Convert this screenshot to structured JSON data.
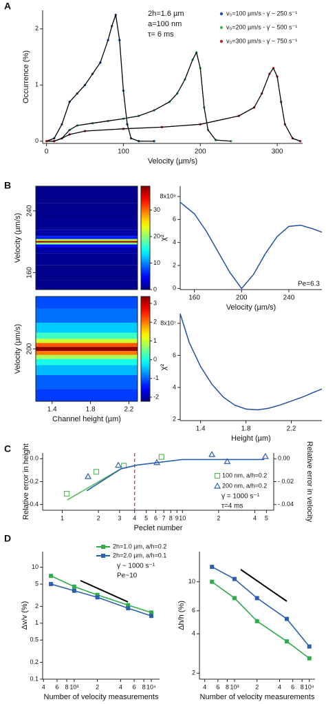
{
  "chart_data": [
    {
      "type": "line",
      "panel": "A",
      "xlabel": "Velocity (µm/s)",
      "ylabel": "Occurrence (%)",
      "annotations": [
        "2h=1.6 µm",
        "a=100 nm",
        "τ= 6 ms"
      ],
      "xlim": [
        -5,
        333
      ],
      "ylim": [
        -0.04,
        2.33
      ],
      "xticks": [
        0,
        100,
        200,
        300
      ],
      "yticks": [
        0,
        1,
        2
      ],
      "fit_color": "#000000",
      "series": [
        {
          "name": "v₀=100 µm/s  -  γ̇ ~ 250 s⁻¹",
          "color": "#1f4fa0",
          "marker": "dot",
          "x": [
            0,
            10,
            20,
            30,
            40,
            50,
            60,
            70,
            80,
            85,
            90,
            95,
            100,
            105,
            110,
            120,
            140
          ],
          "values": [
            0,
            0.05,
            0.3,
            0.7,
            0.85,
            1.0,
            1.2,
            1.4,
            1.8,
            2.05,
            2.25,
            1.8,
            0.9,
            0.3,
            0.05,
            0,
            0
          ]
        },
        {
          "name": "v₀=200 µm/s  -  γ̇ ~ 500 s⁻¹",
          "color": "#3cb85c",
          "marker": "dot",
          "x": [
            0,
            10,
            20,
            30,
            40,
            60,
            80,
            100,
            120,
            140,
            160,
            170,
            180,
            190,
            195,
            200,
            205,
            210,
            220,
            240
          ],
          "values": [
            0,
            0,
            0.05,
            0.2,
            0.28,
            0.32,
            0.36,
            0.4,
            0.45,
            0.55,
            0.7,
            0.85,
            1.1,
            1.45,
            1.58,
            1.3,
            0.6,
            0.2,
            0.02,
            0
          ]
        },
        {
          "name": "v₀=300 µm/s  -  γ̇ ~ 750 s⁻¹",
          "color": "#c0282a",
          "marker": "dot",
          "x": [
            0,
            10,
            20,
            30,
            50,
            100,
            150,
            200,
            250,
            270,
            280,
            290,
            295,
            300,
            305,
            310,
            320,
            330
          ],
          "values": [
            0,
            0,
            0.05,
            0.12,
            0.18,
            0.22,
            0.25,
            0.3,
            0.45,
            0.6,
            0.85,
            1.2,
            1.3,
            1.15,
            0.7,
            0.3,
            0.05,
            0
          ]
        }
      ]
    },
    {
      "type": "heatmap",
      "panel": "B",
      "ylabel": "Velocity (µm/s)",
      "ylim": [
        138,
        272
      ],
      "yticks": [
        160,
        240
      ],
      "clim": [
        0,
        39
      ],
      "cticks": [
        0,
        10,
        20,
        30
      ],
      "y": [
        140,
        160,
        180,
        190,
        195,
        198,
        200,
        202,
        205,
        210,
        220,
        240,
        260
      ],
      "values": [
        0.5,
        0.5,
        0.8,
        1.5,
        5,
        20,
        38,
        22,
        6,
        1.5,
        0.8,
        0.5,
        0.5
      ]
    },
    {
      "type": "heatmap",
      "xlabel": "Channel height (µm)",
      "ylabel": "Velocity (µm/s)",
      "xlim": [
        1.23,
        2.29
      ],
      "xticks": [
        1.4,
        1.8,
        2.2
      ],
      "ylim": [
        135,
        265
      ],
      "yticks": [
        200
      ],
      "clim": [
        -2.22,
        3.37
      ],
      "cticks": [
        -2,
        -1,
        0,
        1,
        2,
        3
      ],
      "y": [
        140,
        160,
        175,
        185,
        190,
        195,
        200,
        205,
        210,
        215,
        225,
        240,
        260
      ],
      "values": [
        -1.2,
        -1,
        -0.5,
        0,
        0.8,
        2,
        3.3,
        2.2,
        1,
        0.2,
        -0.4,
        -0.9,
        -1.1
      ]
    },
    {
      "type": "line",
      "xlabel": "Velocity (µm/s)",
      "ylabel": "χ²",
      "annotations": [
        "Pe=6.3"
      ],
      "xlim": [
        148,
        268
      ],
      "ylim": [
        -0.1,
        8.9
      ],
      "xticks": [
        160,
        200,
        240
      ],
      "yticks": [
        0,
        2,
        4,
        6,
        {
          "value": 8,
          "label": "8x10⁹"
        }
      ],
      "color": "#1f4fa0",
      "x": [
        148,
        160,
        170,
        180,
        190,
        200,
        210,
        220,
        230,
        240,
        250,
        260,
        268
      ],
      "values": [
        7.5,
        6.5,
        5,
        3.2,
        1.4,
        0,
        1.2,
        3,
        4.5,
        5.4,
        5.5,
        5.2,
        4.9
      ]
    },
    {
      "type": "line",
      "xlabel": "Height (µm)",
      "ylabel": "χ²",
      "xlim": [
        1.22,
        2.47
      ],
      "ylim": [
        1.93,
        8.6
      ],
      "xticks": [
        1.4,
        1.8,
        2.2
      ],
      "yticks": [
        2,
        4,
        6,
        {
          "value": 8,
          "label": "8x10⁷"
        }
      ],
      "color": "#1f4fa0",
      "x": [
        1.22,
        1.3,
        1.4,
        1.5,
        1.6,
        1.7,
        1.8,
        1.9,
        2.0,
        2.1,
        2.2,
        2.3,
        2.4,
        2.47
      ],
      "values": [
        8.6,
        6.8,
        5.3,
        4.2,
        3.4,
        2.9,
        2.65,
        2.6,
        2.7,
        2.9,
        3.15,
        3.4,
        3.7,
        3.9
      ]
    },
    {
      "type": "scatter",
      "panel": "C",
      "xlabel": "Peclet number",
      "ylabel": "Relative error in height",
      "y2label": "Relative error in velocity",
      "annotations": [
        "γ̇ = 1000 s⁻¹",
        "τ=4 ms"
      ],
      "xscale": "log",
      "xlim": [
        0.687,
        57.5
      ],
      "ylim": [
        -0.45,
        0.05
      ],
      "y2lim": [
        -0.045,
        0.005
      ],
      "xticks": [
        1,
        2,
        3,
        4,
        5,
        6,
        7,
        8,
        9,
        10,
        {
          "value": 20,
          "label": "2"
        },
        {
          "value": 40,
          "label": "4"
        },
        {
          "value": 50,
          "label": "5"
        }
      ],
      "yticks": [
        {
          "value": 0,
          "label": "0.0"
        },
        {
          "value": -0.2,
          "label": "-0.2"
        },
        {
          "value": -0.4,
          "label": "-0.4"
        }
      ],
      "y2ticks": [
        {
          "value": 0,
          "label": "0.00"
        },
        {
          "value": -0.02,
          "label": "- 0.02"
        },
        {
          "value": -0.04,
          "label": "- 0.04"
        }
      ],
      "vline": 4,
      "vline_color": "#e8322c",
      "series": [
        {
          "name": "100 nm, a/h=0.2",
          "color": "#5cb85c",
          "marker": "square_open",
          "x": [
            1.09,
            1.92,
            3.26,
            6.7
          ],
          "values": [
            -0.306,
            -0.114,
            -0.061,
            0.016
          ]
        },
        {
          "name": "200 nm, a/h=0.2",
          "color": "#2b5fb0",
          "marker": "triangle_open",
          "x": [
            1.64,
            2.93,
            6.13,
            17.6,
            23.6,
            49
          ],
          "values": [
            -0.155,
            -0.057,
            -0.033,
            0.037,
            -0.024,
            0.02
          ]
        },
        {
          "color": "#5cb85c",
          "marker": "none",
          "axis": "y2",
          "x": [
            1.1,
            3.05,
            4.2
          ],
          "values": [
            -0.036,
            -0.009,
            -0.0055
          ]
        },
        {
          "color": "#2b5fb0",
          "marker": "none",
          "axis": "y2",
          "x": [
            1.6,
            3.1,
            4.2,
            10,
            48
          ],
          "values": [
            -0.028,
            -0.0087,
            -0.0055,
            -0.0007,
            -0.0007
          ]
        }
      ]
    },
    {
      "type": "line",
      "panel": "D",
      "xlabel": "Number of velocity measurements",
      "ylabel": "Δv/v (%)",
      "annotations": [
        "γ̇ ~ 1000 s⁻¹",
        "Pe~10"
      ],
      "xscale": "log",
      "yscale": "log",
      "xlim": [
        390,
        12800
      ],
      "ylim": [
        0.1,
        19
      ],
      "xticks": [
        {
          "value": 400,
          "label": "4"
        },
        {
          "value": 600,
          "label": "6"
        },
        {
          "value": 800,
          "label": "8"
        },
        {
          "value": 1000,
          "label": "10³"
        },
        {
          "value": 2000,
          "label": "2"
        },
        {
          "value": 4000,
          "label": "4"
        },
        {
          "value": 6000,
          "label": "6"
        },
        {
          "value": 8000,
          "label": "8"
        },
        {
          "value": 10000,
          "label": "10⁴"
        }
      ],
      "yticks": [
        0.1,
        0.2,
        0.5,
        1,
        2,
        5,
        10
      ],
      "series": [
        {
          "name": "2h=1.0 µm, a/h=0.2",
          "color": "#2eab4a",
          "marker": "square",
          "x": [
            500,
            1000,
            2000,
            5000,
            10000
          ],
          "values": [
            7,
            4.5,
            3.2,
            2.1,
            1.55
          ]
        },
        {
          "name": "2h=2.0 µm, a/h=0.1",
          "color": "#2b5fb0",
          "marker": "square",
          "x": [
            500,
            1000,
            2000,
            5000,
            10000
          ],
          "values": [
            5,
            3.8,
            2.9,
            1.85,
            1.35
          ]
        }
      ]
    },
    {
      "type": "line",
      "xlabel": "Number of velocity measurements",
      "ylabel": "Δh/h (%)",
      "xscale": "log",
      "yscale": "log",
      "xlim": [
        340,
        11900
      ],
      "ylim": [
        1.8,
        17
      ],
      "xticks": [
        {
          "value": 400,
          "label": "4"
        },
        {
          "value": 600,
          "label": "6"
        },
        {
          "value": 800,
          "label": "8"
        },
        {
          "value": 1000,
          "label": "10³"
        },
        {
          "value": 2000,
          "label": "2"
        },
        {
          "value": 4000,
          "label": "4"
        },
        {
          "value": 6000,
          "label": "6"
        },
        {
          "value": 8000,
          "label": "8"
        },
        {
          "value": 10000,
          "label": "10⁴"
        }
      ],
      "yticks": [
        2,
        4,
        6,
        10
      ],
      "series": [
        {
          "color": "#2b5fb0",
          "marker": "square",
          "x": [
            500,
            1000,
            2000,
            5000,
            10000
          ],
          "values": [
            13,
            10.5,
            7.5,
            5.2,
            3.2
          ]
        },
        {
          "color": "#2eab4a",
          "marker": "square",
          "x": [
            500,
            1000,
            2000,
            5000,
            10000
          ],
          "values": [
            10,
            7.5,
            5,
            3.5,
            2.6
          ]
        }
      ]
    }
  ]
}
